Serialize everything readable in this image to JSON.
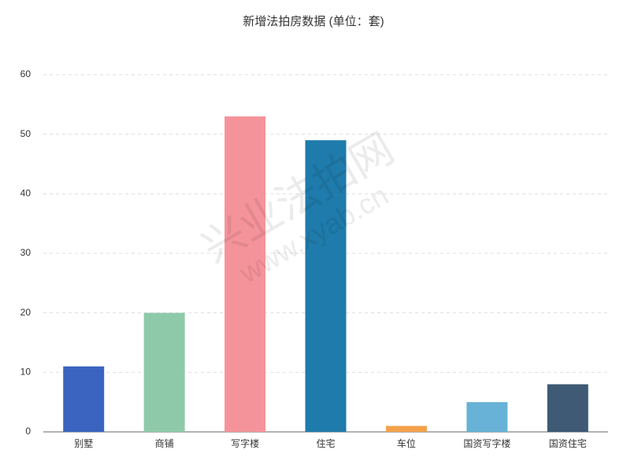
{
  "chart_data": {
    "type": "bar",
    "title": "新增法拍房数据 (单位：套)",
    "categories": [
      "别墅",
      "商铺",
      "写字楼",
      "住宅",
      "车位",
      "国资写字楼",
      "国资住宅"
    ],
    "values": [
      11,
      20,
      53,
      49,
      1,
      5,
      8
    ],
    "colors": [
      "#3b63c0",
      "#8ecaa9",
      "#f5939a",
      "#1f7bab",
      "#f4a14b",
      "#67b2d6",
      "#3e5a74"
    ],
    "ylim": [
      0,
      60
    ],
    "yticks": [
      0,
      10,
      20,
      30,
      40,
      50,
      60
    ],
    "grid": true,
    "watermark": [
      "兴业法拍网",
      "www.xyab.cn"
    ]
  }
}
